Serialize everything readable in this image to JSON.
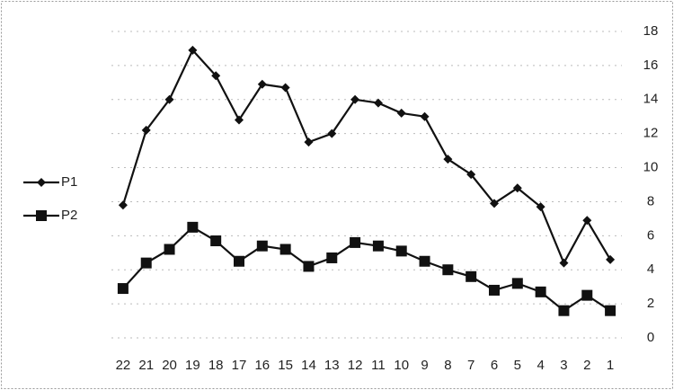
{
  "chart_data": {
    "type": "line",
    "categories": [
      "22",
      "21",
      "20",
      "19",
      "18",
      "17",
      "16",
      "15",
      "14",
      "13",
      "12",
      "11",
      "10",
      "9",
      "8",
      "7",
      "6",
      "5",
      "4",
      "3",
      "2",
      "1"
    ],
    "series": [
      {
        "name": "P1",
        "color": "#111111",
        "marker": "diamond",
        "values": [
          7.8,
          12.2,
          14.0,
          16.9,
          15.4,
          12.8,
          14.9,
          14.7,
          11.5,
          12.0,
          14.0,
          13.8,
          13.2,
          13.0,
          10.5,
          9.6,
          7.9,
          8.8,
          7.7,
          4.4,
          6.9,
          4.6
        ]
      },
      {
        "name": "P2",
        "color": "#111111",
        "marker": "square",
        "values": [
          2.9,
          4.4,
          5.2,
          6.5,
          5.7,
          4.5,
          5.4,
          5.2,
          4.2,
          4.7,
          5.6,
          5.4,
          5.1,
          4.5,
          4.0,
          3.6,
          2.8,
          3.2,
          2.7,
          1.6,
          2.5,
          1.6
        ]
      }
    ],
    "ylim": [
      0,
      18
    ],
    "yticks": [
      0,
      2,
      4,
      6,
      8,
      10,
      12,
      14,
      16,
      18
    ],
    "grid": true,
    "y_axis_side": "right",
    "legend": "left"
  }
}
